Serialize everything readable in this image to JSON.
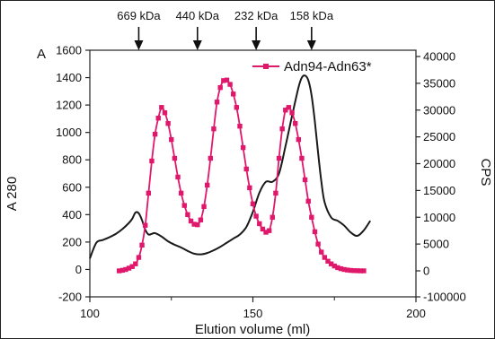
{
  "chart_data": {
    "type": "line",
    "xlabel": "Elution volume (ml)",
    "ylabel_left": "A 280",
    "ylabel_left_top": "A",
    "ylabel_right": "CPS",
    "xlim": [
      100,
      200
    ],
    "ylim_left": [
      -200,
      1600
    ],
    "ylim_right": [
      -100000,
      40000
    ],
    "x_ticks": [
      100,
      150,
      200
    ],
    "x_minor_ticks": [
      125,
      175
    ],
    "y_left_ticks": [
      -200,
      0,
      200,
      400,
      600,
      800,
      1000,
      1200,
      1400,
      1600
    ],
    "y_right_ticks": [
      -100000,
      0,
      5000,
      10000,
      15000,
      20000,
      25000,
      30000,
      35000,
      40000
    ],
    "grid": false,
    "legend_position": "top-right",
    "colors": {
      "a280": "#1a1a1a",
      "cps": "#e0186c"
    },
    "markers": [
      {
        "label": "669 kDa",
        "x": 115
      },
      {
        "label": "440 kDa",
        "x": 133
      },
      {
        "label": "232 kDa",
        "x": 151
      },
      {
        "label": "158 kDa",
        "x": 168
      }
    ],
    "series": [
      {
        "axis": "left",
        "style": "line",
        "x": [
          100,
          102,
          104,
          106,
          108,
          110,
          112,
          113,
          114,
          115,
          116,
          117,
          118,
          119,
          120,
          122,
          124,
          126,
          128,
          130,
          132,
          134,
          136,
          138,
          140,
          142,
          144,
          146,
          148,
          150,
          152,
          154,
          156,
          158,
          160,
          162,
          164,
          165,
          166,
          167,
          168,
          169,
          170,
          171,
          172,
          174,
          176,
          178,
          180,
          182,
          184,
          186
        ],
        "y": [
          80,
          195,
          215,
          235,
          260,
          295,
          340,
          370,
          415,
          410,
          360,
          290,
          255,
          260,
          265,
          240,
          205,
          180,
          160,
          135,
          115,
          110,
          120,
          140,
          165,
          195,
          225,
          255,
          310,
          420,
          560,
          640,
          640,
          700,
          900,
          1120,
          1330,
          1400,
          1415,
          1380,
          1270,
          1080,
          850,
          640,
          490,
          380,
          355,
          320,
          270,
          245,
          285,
          355
        ]
      },
      {
        "name": "Adn94-Adn63*",
        "axis": "right",
        "style": "line-markers",
        "x": [
          109,
          110,
          111,
          112,
          113,
          114,
          115,
          116,
          117,
          118,
          119,
          120,
          121,
          122,
          123,
          124,
          125,
          126,
          127,
          128,
          129,
          130,
          131,
          132,
          133,
          134,
          135,
          136,
          137,
          138,
          139,
          140,
          141,
          142,
          143,
          144,
          145,
          146,
          147,
          148,
          149,
          150,
          151,
          152,
          153,
          154,
          155,
          156,
          157,
          158,
          159,
          160,
          161,
          162,
          163,
          164,
          165,
          166,
          167,
          168,
          169,
          170,
          171,
          172,
          173,
          174,
          175,
          176,
          177,
          178,
          179,
          180,
          181,
          182,
          183,
          184
        ],
        "y": [
          0,
          100,
          250,
          500,
          800,
          1300,
          2500,
          4800,
          8500,
          14500,
          20500,
          25500,
          28500,
          30500,
          29500,
          27500,
          24500,
          21000,
          17500,
          14500,
          12200,
          10500,
          9300,
          8700,
          8600,
          9500,
          12000,
          16000,
          21000,
          26500,
          31500,
          34200,
          35500,
          35600,
          34800,
          33000,
          30500,
          27000,
          23000,
          19000,
          15500,
          12500,
          10200,
          8800,
          7800,
          7200,
          7500,
          10000,
          14500,
          21000,
          26500,
          30000,
          30500,
          29500,
          27500,
          24500,
          21000,
          17000,
          13000,
          10000,
          7300,
          5000,
          3500,
          2500,
          1800,
          1300,
          900,
          600,
          400,
          250,
          150,
          80,
          40,
          20,
          0,
          0
        ]
      }
    ]
  }
}
